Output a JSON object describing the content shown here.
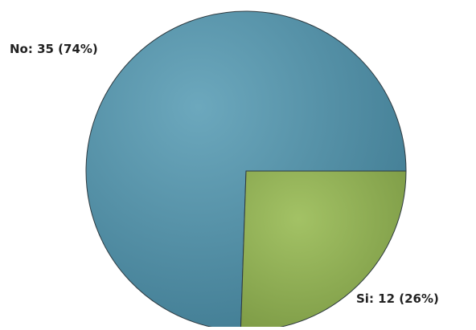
{
  "chart_data": {
    "type": "pie",
    "series": [
      {
        "slices": [
          {
            "label": "No",
            "value": 35,
            "percent": 74,
            "color": "#4f8fa6",
            "display": "No: 35 (74%)"
          },
          {
            "label": "Si",
            "value": 12,
            "percent": 26,
            "color": "#8fae55",
            "display": "Si: 12 (26%)"
          }
        ]
      }
    ],
    "legend": "none",
    "grid": false
  }
}
